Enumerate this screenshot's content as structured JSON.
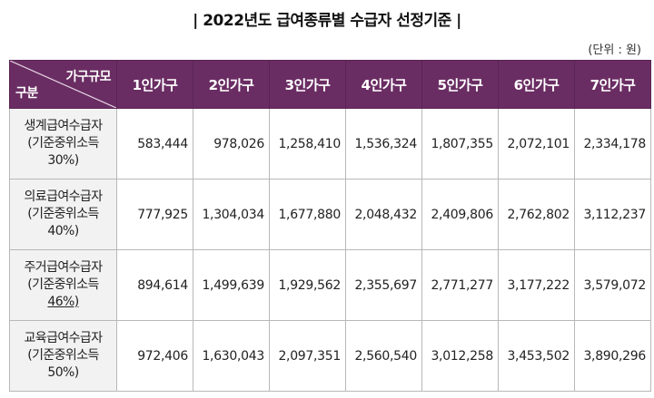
{
  "title": "| 2022년도 급여종류별 수급자 선정기준 |",
  "unit": "(단위 : 원)",
  "header": {
    "corner_top": "가구규모",
    "corner_bottom": "구분",
    "columns": [
      "1인가구",
      "2인가구",
      "3인가구",
      "4인가구",
      "5인가구",
      "6인가구",
      "7인가구"
    ]
  },
  "rows": [
    {
      "label_line1": "생계급여수급자",
      "label_line2": "(기준중위소득",
      "label_line3": "30%)",
      "values": [
        "583,444",
        "978,026",
        "1,258,410",
        "1,536,324",
        "1,807,355",
        "2,072,101",
        "2,334,178"
      ]
    },
    {
      "label_line1": "의료급여수급자",
      "label_line2": "(기준중위소득",
      "label_line3": "40%)",
      "values": [
        "777,925",
        "1,304,034",
        "1,677,880",
        "2,048,432",
        "2,409,806",
        "2,762,802",
        "3,112,237"
      ]
    },
    {
      "label_line1": "주거급여수급자",
      "label_line2": "(기준중위소득",
      "label_line3": "46%)",
      "values": [
        "894,614",
        "1,499,639",
        "1,929,562",
        "2,355,697",
        "2,771,277",
        "3,177,222",
        "3,579,072"
      ]
    },
    {
      "label_line1": "교육급여수급자",
      "label_line2": "(기준중위소득",
      "label_line3": "50%)",
      "values": [
        "972,406",
        "1,630,043",
        "2,097,351",
        "2,560,540",
        "3,012,258",
        "3,453,502",
        "3,890,296"
      ]
    }
  ]
}
